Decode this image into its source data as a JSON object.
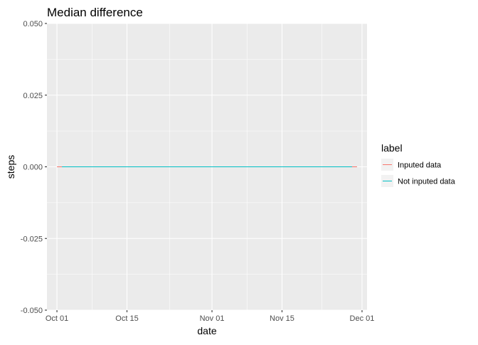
{
  "chart_data": {
    "type": "line",
    "title": "Median difference",
    "xlabel": "date",
    "ylabel": "steps",
    "xlim": [
      "2012-09-29",
      "2012-12-02"
    ],
    "ylim": [
      -0.05,
      0.05
    ],
    "x_ticks": [
      {
        "value": "2012-10-01",
        "label": "Oct 01"
      },
      {
        "value": "2012-10-15",
        "label": "Oct 15"
      },
      {
        "value": "2012-11-01",
        "label": "Nov 01"
      },
      {
        "value": "2012-11-15",
        "label": "Nov 15"
      },
      {
        "value": "2012-12-01",
        "label": "Dec 01"
      }
    ],
    "y_ticks": [
      {
        "value": 0.05,
        "label": "0.050"
      },
      {
        "value": 0.025,
        "label": "0.025"
      },
      {
        "value": 0,
        "label": "0.000"
      },
      {
        "value": -0.025,
        "label": "-0.025"
      },
      {
        "value": -0.05,
        "label": "-0.050"
      }
    ],
    "grid": true,
    "legend": {
      "title": "label",
      "position": "right"
    },
    "series": [
      {
        "name": "Inputed data",
        "color": "#F8766D",
        "x": [
          "2012-10-01",
          "2012-11-30"
        ],
        "y": [
          0,
          0
        ]
      },
      {
        "name": "Not inputed data",
        "color": "#00BFC4",
        "x": [
          "2012-10-02",
          "2012-11-29"
        ],
        "y": [
          0,
          0
        ]
      }
    ]
  }
}
